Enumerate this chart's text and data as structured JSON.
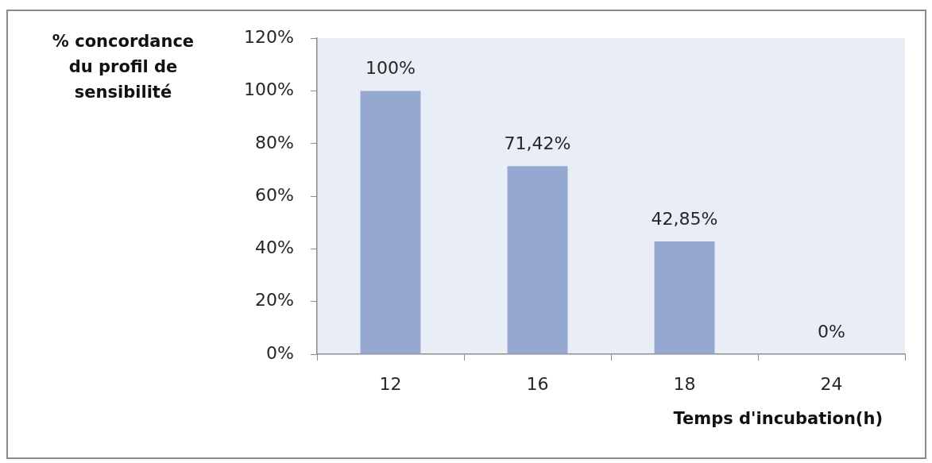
{
  "chart_data": {
    "type": "bar",
    "categories": [
      "12",
      "16",
      "18",
      "24"
    ],
    "values": [
      100,
      71.42,
      42.85,
      0
    ],
    "value_labels": [
      "100%",
      "71,42%",
      "42,85%",
      "0%"
    ],
    "color": "#94a8d0",
    "ylim": [
      0,
      120
    ],
    "yticks": [
      {
        "value": 0,
        "label": "0%"
      },
      {
        "value": 20,
        "label": "20%"
      },
      {
        "value": 40,
        "label": "40%"
      },
      {
        "value": 60,
        "label": "60%"
      },
      {
        "value": 80,
        "label": "80%"
      },
      {
        "value": 100,
        "label": "100%"
      },
      {
        "value": 120,
        "label": "120%"
      }
    ],
    "xlabel": "Temps d'incubation(h)",
    "ylabel": "% concordance du profil de sensibilité"
  }
}
